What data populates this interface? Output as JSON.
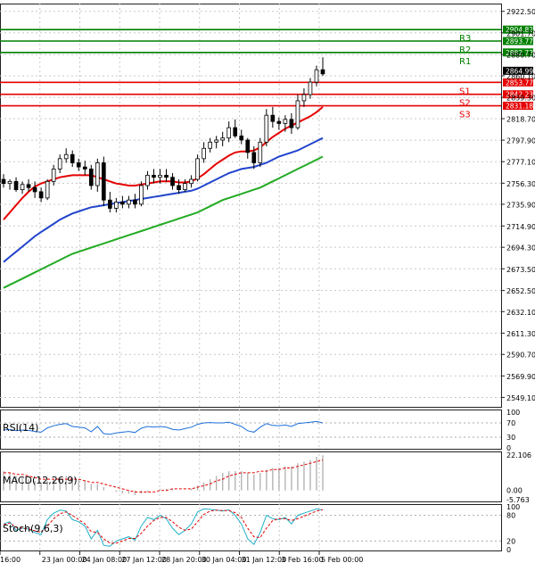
{
  "chart_data": {
    "type": "candlestick",
    "symbol": "US500 H4",
    "price_axis": {
      "ylim": [
        2540,
        2930
      ],
      "ticks": [
        2922.5,
        2901.7,
        2880.7,
        2860.1,
        2839.3,
        2818.7,
        2797.9,
        2777.1,
        2756.3,
        2735.9,
        2714.9,
        2694.3,
        2673.5,
        2652.5,
        2632.1,
        2611.3,
        2590.7,
        2569.9,
        2549.1
      ]
    },
    "time_labels": [
      "16:00",
      "23 Jan 00:00",
      "24 Jan 08:00",
      "27 Jan 12:00",
      "28 Jan 20:00",
      "30 Jan 04:00",
      "31 Jan 12:00",
      "3 Feb 16:00",
      "5 Feb 00:00"
    ],
    "candles": [
      [
        2760,
        2765,
        2752,
        2756
      ],
      [
        2756,
        2760,
        2750,
        2758
      ],
      [
        2758,
        2762,
        2748,
        2750
      ],
      [
        2750,
        2758,
        2746,
        2755
      ],
      [
        2755,
        2760,
        2748,
        2752
      ],
      [
        2752,
        2758,
        2742,
        2748
      ],
      [
        2748,
        2752,
        2738,
        2742
      ],
      [
        2742,
        2760,
        2740,
        2758
      ],
      [
        2758,
        2774,
        2754,
        2770
      ],
      [
        2770,
        2784,
        2766,
        2780
      ],
      [
        2780,
        2790,
        2776,
        2784
      ],
      [
        2784,
        2788,
        2772,
        2776
      ],
      [
        2776,
        2780,
        2768,
        2772
      ],
      [
        2772,
        2778,
        2764,
        2770
      ],
      [
        2770,
        2774,
        2750,
        2754
      ],
      [
        2754,
        2780,
        2748,
        2776
      ],
      [
        2776,
        2782,
        2734,
        2740
      ],
      [
        2740,
        2748,
        2728,
        2732
      ],
      [
        2732,
        2742,
        2728,
        2738
      ],
      [
        2738,
        2744,
        2732,
        2736
      ],
      [
        2736,
        2744,
        2732,
        2740
      ],
      [
        2740,
        2746,
        2732,
        2736
      ],
      [
        2736,
        2758,
        2734,
        2754
      ],
      [
        2754,
        2768,
        2750,
        2764
      ],
      [
        2764,
        2770,
        2756,
        2762
      ],
      [
        2762,
        2770,
        2756,
        2764
      ],
      [
        2764,
        2770,
        2758,
        2762
      ],
      [
        2762,
        2766,
        2750,
        2754
      ],
      [
        2754,
        2760,
        2746,
        2750
      ],
      [
        2750,
        2760,
        2748,
        2756
      ],
      [
        2756,
        2764,
        2752,
        2760
      ],
      [
        2760,
        2784,
        2758,
        2780
      ],
      [
        2780,
        2796,
        2776,
        2790
      ],
      [
        2790,
        2800,
        2786,
        2796
      ],
      [
        2796,
        2802,
        2790,
        2798
      ],
      [
        2798,
        2806,
        2792,
        2800
      ],
      [
        2800,
        2816,
        2796,
        2810
      ],
      [
        2810,
        2818,
        2800,
        2802
      ],
      [
        2802,
        2808,
        2794,
        2798
      ],
      [
        2798,
        2800,
        2780,
        2786
      ],
      [
        2786,
        2792,
        2770,
        2776
      ],
      [
        2776,
        2800,
        2772,
        2796
      ],
      [
        2796,
        2828,
        2792,
        2822
      ],
      [
        2822,
        2830,
        2810,
        2816
      ],
      [
        2816,
        2820,
        2808,
        2814
      ],
      [
        2814,
        2822,
        2806,
        2818
      ],
      [
        2818,
        2824,
        2804,
        2810
      ],
      [
        2810,
        2842,
        2808,
        2836
      ],
      [
        2836,
        2848,
        2830,
        2842
      ],
      [
        2842,
        2858,
        2838,
        2854
      ],
      [
        2854,
        2870,
        2850,
        2866
      ],
      [
        2866,
        2878,
        2860,
        2862
      ]
    ],
    "moving_averages": [
      {
        "name": "MA fast",
        "color": "#e60000",
        "values": [
          2721,
          2728,
          2735,
          2742,
          2748,
          2753,
          2756,
          2758,
          2760,
          2762,
          2763,
          2764,
          2764,
          2764,
          2764,
          2762,
          2760,
          2758,
          2756,
          2755,
          2754,
          2754,
          2755,
          2756,
          2757,
          2758,
          2758,
          2758,
          2757,
          2757,
          2758,
          2761,
          2765,
          2770,
          2775,
          2779,
          2783,
          2786,
          2787,
          2787,
          2788,
          2791,
          2796,
          2801,
          2805,
          2809,
          2812,
          2815,
          2818,
          2821,
          2825,
          2830
        ]
      },
      {
        "name": "MA medium",
        "color": "#2244cc",
        "values": [
          2680,
          2685,
          2690,
          2695,
          2700,
          2705,
          2709,
          2713,
          2717,
          2721,
          2724,
          2727,
          2729,
          2731,
          2733,
          2734,
          2735,
          2736,
          2737,
          2738,
          2739,
          2740,
          2741,
          2742,
          2743,
          2744,
          2745,
          2746,
          2747,
          2748,
          2749,
          2751,
          2754,
          2757,
          2760,
          2763,
          2766,
          2768,
          2770,
          2771,
          2772,
          2774,
          2776,
          2779,
          2782,
          2784,
          2786,
          2788,
          2791,
          2794,
          2797,
          2800
        ]
      },
      {
        "name": "MA slow",
        "color": "#22aa22",
        "values": [
          2655,
          2658,
          2661,
          2664,
          2667,
          2670,
          2673,
          2676,
          2679,
          2682,
          2685,
          2688,
          2690,
          2692,
          2694,
          2696,
          2698,
          2700,
          2702,
          2704,
          2706,
          2708,
          2710,
          2712,
          2714,
          2716,
          2718,
          2720,
          2722,
          2724,
          2726,
          2728,
          2731,
          2734,
          2737,
          2740,
          2742,
          2744,
          2746,
          2748,
          2750,
          2752,
          2755,
          2758,
          2761,
          2764,
          2767,
          2770,
          2773,
          2776,
          2779,
          2782
        ]
      }
    ],
    "levels": [
      {
        "name": "R3",
        "price": 2904.82,
        "color": "#008000"
      },
      {
        "name": "R2",
        "price": 2893.77,
        "color": "#008000"
      },
      {
        "name": "R1",
        "price": 2882.73,
        "color": "#008000"
      },
      {
        "name": "S1",
        "price": 2853.77,
        "color": "#e60000"
      },
      {
        "name": "S2",
        "price": 2842.23,
        "color": "#e60000"
      },
      {
        "name": "S3",
        "price": 2831.18,
        "color": "#e60000"
      }
    ],
    "current_price": 2864.99,
    "rsi": {
      "label": "RSI(14)",
      "ylim": [
        0,
        100
      ],
      "ticks": [
        100,
        70,
        30,
        0
      ],
      "values": [
        50,
        52,
        48,
        50,
        49,
        46,
        44,
        56,
        62,
        66,
        68,
        60,
        58,
        56,
        45,
        60,
        40,
        38,
        42,
        44,
        46,
        43,
        55,
        60,
        58,
        60,
        58,
        52,
        50,
        54,
        58,
        66,
        70,
        71,
        70,
        70,
        72,
        66,
        60,
        48,
        44,
        58,
        68,
        63,
        62,
        64,
        60,
        68,
        70,
        72,
        74,
        70
      ]
    },
    "macd": {
      "label": "MACD(12,26,9)",
      "ylim": [
        -5.763,
        22.106
      ],
      "ticks": [
        22.106,
        0.0,
        -5.763
      ],
      "histogram": [
        12,
        11,
        9,
        8,
        7,
        6,
        5,
        6,
        7,
        8,
        9,
        8,
        7,
        6,
        4,
        4,
        2,
        0,
        -1,
        -2,
        -2,
        -3,
        -2,
        -1,
        0,
        1,
        1,
        1,
        0,
        0,
        1,
        3,
        5,
        7,
        9,
        11,
        12,
        12,
        12,
        11,
        10,
        11,
        13,
        14,
        14,
        15,
        15,
        17,
        18,
        19,
        21,
        22
      ],
      "signal": [
        11,
        11,
        10,
        10,
        9,
        8,
        7,
        7,
        7,
        7,
        7,
        7,
        7,
        6,
        5,
        5,
        4,
        3,
        2,
        1,
        0,
        -1,
        -1,
        -1,
        -1,
        0,
        0,
        1,
        1,
        1,
        1,
        2,
        3,
        4,
        6,
        7,
        9,
        10,
        11,
        11,
        11,
        12,
        12,
        13,
        13,
        14,
        14,
        15,
        16,
        17,
        18,
        19
      ]
    },
    "stoch": {
      "label": "Stoch(9,6,3)",
      "ylim": [
        0,
        100
      ],
      "ticks": [
        100,
        80,
        20,
        0
      ],
      "k": [
        60,
        65,
        45,
        50,
        48,
        40,
        35,
        70,
        85,
        92,
        90,
        70,
        65,
        55,
        25,
        45,
        10,
        8,
        20,
        25,
        30,
        22,
        55,
        75,
        70,
        80,
        72,
        50,
        35,
        45,
        60,
        88,
        95,
        94,
        92,
        90,
        93,
        80,
        60,
        25,
        12,
        40,
        80,
        72,
        70,
        75,
        60,
        80,
        85,
        90,
        95,
        92
      ],
      "d": [
        58,
        62,
        52,
        50,
        48,
        44,
        40,
        55,
        72,
        84,
        88,
        80,
        70,
        60,
        42,
        40,
        25,
        15,
        15,
        20,
        26,
        26,
        38,
        55,
        68,
        75,
        75,
        65,
        52,
        45,
        48,
        65,
        82,
        90,
        92,
        91,
        91,
        86,
        75,
        50,
        30,
        28,
        50,
        68,
        72,
        72,
        68,
        72,
        78,
        84,
        90,
        93
      ]
    }
  }
}
